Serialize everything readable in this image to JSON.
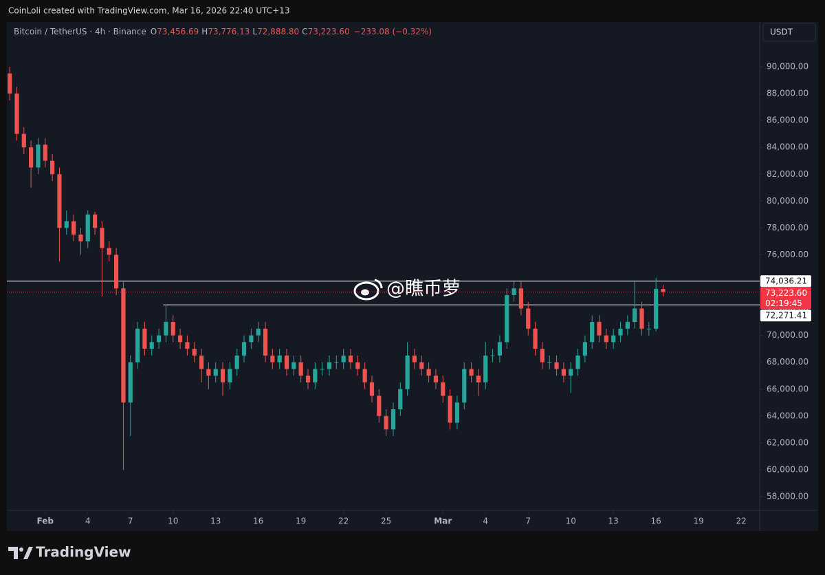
{
  "header": "CoinLoli created with TradingView.com, Mar 16, 2026 22:40 UTC+13",
  "symbol": "Bitcoin / TetherUS · 4h · Binance",
  "ohlc": [
    {
      "key": "O",
      "value": "73,456.69"
    },
    {
      "key": "H",
      "value": "73,776.13"
    },
    {
      "key": "L",
      "value": "72,888.80"
    },
    {
      "key": "C",
      "value": "73,223.60"
    }
  ],
  "change": "−233.08 (−0.32%)",
  "currency": "USDT",
  "watermark": "@瞧币萝",
  "brand": "TradingView",
  "chart_data": {
    "type": "candlestick",
    "up_color": "#26a69a",
    "down_color": "#ef5350",
    "grid": false,
    "xlim": [
      -1.7,
      51.3
    ],
    "ylim": [
      56976,
      93328
    ],
    "xticks": [
      {
        "value": 1,
        "label": "Feb"
      },
      4,
      7,
      10,
      13,
      16,
      19,
      22,
      25,
      {
        "value": 29,
        "label": "Mar"
      },
      {
        "value": 32,
        "label": "4"
      },
      {
        "value": 35,
        "label": "7"
      },
      {
        "value": 38,
        "label": "10"
      },
      {
        "value": 41,
        "label": "13"
      },
      {
        "value": 44,
        "label": "16"
      },
      {
        "value": 47,
        "label": "19"
      },
      {
        "value": 50,
        "label": "22"
      }
    ],
    "yticks": [
      {
        "value": 58000,
        "label": "58,000.00"
      },
      {
        "value": 60000,
        "label": "60,000.00"
      },
      {
        "value": 62000,
        "label": "62,000.00"
      },
      {
        "value": 64000,
        "label": "64,000.00"
      },
      {
        "value": 66000,
        "label": "66,000.00"
      },
      {
        "value": 68000,
        "label": "68,000.00"
      },
      {
        "value": 70000,
        "label": "70,000.00"
      },
      {
        "value": 72000,
        "label": "72,000.00"
      },
      {
        "value": 74000,
        "label": "74,000.00"
      },
      {
        "value": 76000,
        "label": "76,000.00"
      },
      {
        "value": 78000,
        "label": "78,000.00"
      },
      {
        "value": 80000,
        "label": "80,000.00"
      },
      {
        "value": 82000,
        "label": "82,000.00"
      },
      {
        "value": 84000,
        "label": "84,000.00"
      },
      {
        "value": 86000,
        "label": "86,000.00"
      },
      {
        "value": 88000,
        "label": "88,000.00"
      },
      {
        "value": 90000,
        "label": "90,000.00"
      }
    ],
    "x": [
      -1.5,
      -1,
      -0.5,
      0,
      0.5,
      1,
      1.5,
      2,
      2.5,
      3,
      3.5,
      4,
      4.5,
      5,
      5.5,
      6,
      6.5,
      7,
      7.5,
      8,
      8.5,
      9,
      9.5,
      10,
      10.5,
      11,
      11.5,
      12,
      12.5,
      13,
      13.5,
      14,
      14.5,
      15,
      15.5,
      16,
      16.5,
      17,
      17.5,
      18,
      18.5,
      19,
      19.5,
      20,
      20.5,
      21,
      21.5,
      22,
      22.5,
      23,
      23.5,
      24,
      24.5,
      25,
      25.5,
      26,
      26.5,
      27,
      27.5,
      28,
      28.5,
      29,
      29.5,
      30,
      30.5,
      31,
      31.5,
      32,
      32.5,
      33,
      33.5,
      34,
      34.5,
      35,
      35.5,
      36,
      36.5,
      37,
      37.5,
      38,
      38.5,
      39,
      39.5,
      40,
      40.5,
      41,
      41.5,
      42,
      42.5,
      43,
      43.5,
      44,
      44.5
    ],
    "open": [
      89500,
      88000,
      85000,
      84000,
      82500,
      84200,
      83000,
      82000,
      78000,
      78500,
      77500,
      77000,
      79000,
      78000,
      76500,
      76000,
      73500,
      65000,
      68000,
      70500,
      69000,
      69500,
      70000,
      71000,
      70000,
      69500,
      69000,
      68500,
      67500,
      67000,
      67500,
      66500,
      67500,
      68500,
      69500,
      70000,
      70500,
      68500,
      68000,
      68500,
      67500,
      68000,
      67000,
      66500,
      67500,
      67500,
      68000,
      68000,
      68500,
      68000,
      67500,
      66500,
      65500,
      64000,
      63000,
      64500,
      66000,
      68500,
      68000,
      67500,
      67000,
      66500,
      65500,
      63500,
      65000,
      67500,
      67000,
      66500,
      68500,
      68500,
      69500,
      73000,
      73500,
      72000,
      70500,
      69000,
      68000,
      68000,
      67500,
      67000,
      67500,
      68500,
      69500,
      71000,
      70000,
      69500,
      70000,
      70500,
      71000,
      72000,
      70500,
      70500,
      73456.69
    ],
    "high": [
      90000,
      88500,
      85500,
      84500,
      84700,
      84700,
      83500,
      82500,
      79300,
      79000,
      78000,
      79300,
      79200,
      78500,
      77000,
      76500,
      74000,
      68500,
      71000,
      71000,
      70000,
      70500,
      72300,
      71500,
      70500,
      70000,
      69500,
      69000,
      68000,
      68000,
      68000,
      68000,
      69000,
      70000,
      70500,
      71000,
      71000,
      69000,
      69000,
      69000,
      68500,
      68500,
      67500,
      68000,
      68000,
      68500,
      68500,
      69000,
      69000,
      68500,
      68000,
      67000,
      66000,
      64500,
      65000,
      66500,
      69500,
      69000,
      68500,
      68000,
      67500,
      67000,
      66000,
      65500,
      68000,
      68000,
      67500,
      69500,
      69000,
      70000,
      73500,
      74000,
      74000,
      72500,
      71000,
      69500,
      68500,
      68500,
      68000,
      68000,
      69000,
      70000,
      71500,
      71500,
      70500,
      70500,
      71000,
      71500,
      74000,
      72500,
      71000,
      74300,
      73776.13
    ],
    "low": [
      87500,
      84500,
      83500,
      81000,
      82000,
      82500,
      81500,
      75500,
      77500,
      77000,
      76000,
      76500,
      77500,
      72900,
      75500,
      73000,
      60000,
      62500,
      67500,
      68500,
      68500,
      69000,
      69500,
      69500,
      69000,
      68500,
      68000,
      66500,
      66000,
      66500,
      65500,
      66000,
      67000,
      68000,
      69000,
      69500,
      68000,
      67500,
      67500,
      67000,
      67000,
      66500,
      66000,
      66000,
      67000,
      67000,
      67500,
      67500,
      67500,
      67000,
      66000,
      65000,
      63500,
      62500,
      62500,
      64000,
      65500,
      67500,
      67000,
      66500,
      66000,
      65000,
      63000,
      63000,
      64500,
      66500,
      65500,
      66000,
      68000,
      68000,
      69000,
      72500,
      71500,
      70000,
      68500,
      67500,
      67500,
      67000,
      66500,
      65700,
      67000,
      68000,
      69000,
      69500,
      69000,
      69000,
      69500,
      70000,
      70500,
      70000,
      70000,
      70300,
      72888.8
    ],
    "close": [
      88000,
      85000,
      84000,
      82500,
      84200,
      83000,
      82000,
      78000,
      78500,
      77500,
      77000,
      79000,
      78000,
      76500,
      76000,
      73500,
      65000,
      68000,
      70500,
      69000,
      69500,
      70000,
      71000,
      70000,
      69500,
      69000,
      68500,
      67500,
      67000,
      67500,
      66500,
      67500,
      68500,
      69500,
      70000,
      70500,
      68500,
      68000,
      68500,
      67500,
      68000,
      67000,
      66500,
      67500,
      67500,
      68000,
      68000,
      68500,
      68000,
      67500,
      66500,
      65500,
      64000,
      63000,
      64500,
      66000,
      68500,
      68000,
      67500,
      67000,
      66500,
      65500,
      63500,
      65000,
      67500,
      67000,
      66500,
      68500,
      68500,
      69500,
      73000,
      73500,
      72000,
      70500,
      69000,
      68000,
      68000,
      67500,
      67000,
      67500,
      68500,
      69500,
      71000,
      70000,
      69500,
      70000,
      70500,
      71000,
      72000,
      70500,
      70500,
      73456.69,
      73223.6
    ],
    "hlines": [
      {
        "value": 74036.21,
        "label": "74,036.21",
        "from": -1.7
      },
      {
        "value": 72271.41,
        "label": "72,271.41",
        "from": 9.3
      }
    ],
    "last_price": {
      "value": 73223.6,
      "label": "73,223.60",
      "countdown": "02:19:45",
      "color": "#f23645"
    }
  }
}
